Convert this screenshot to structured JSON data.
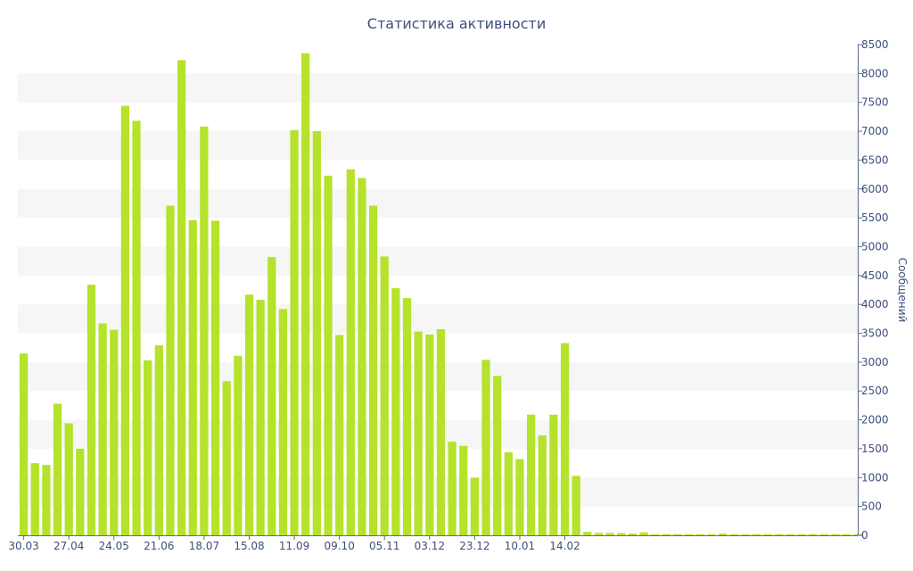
{
  "chart_data": {
    "type": "bar",
    "title": "Статистика активности",
    "xlabel": "",
    "ylabel": "Сообщений",
    "ylim": [
      0,
      8500
    ],
    "yticks": [
      0,
      500,
      1000,
      1500,
      2000,
      2500,
      3000,
      3500,
      4000,
      4500,
      5000,
      5500,
      6000,
      6500,
      7000,
      7500,
      8000,
      8500
    ],
    "xtick_labels": [
      {
        "label": "30.03",
        "index": 0
      },
      {
        "label": "27.04",
        "index": 4
      },
      {
        "label": "24.05",
        "index": 8
      },
      {
        "label": "21.06",
        "index": 12
      },
      {
        "label": "18.07",
        "index": 16
      },
      {
        "label": "15.08",
        "index": 20
      },
      {
        "label": "11.09",
        "index": 24
      },
      {
        "label": "09.10",
        "index": 28
      },
      {
        "label": "05.11",
        "index": 32
      },
      {
        "label": "03.12",
        "index": 36
      },
      {
        "label": "23.12",
        "index": 40
      },
      {
        "label": "10.01",
        "index": 44
      },
      {
        "label": "14.02",
        "index": 48
      }
    ],
    "y_axis_position": "right",
    "grid": "alternating horizontal bands",
    "bar_color": "#b5e22a",
    "values": [
      3150,
      1250,
      1220,
      2280,
      1940,
      1500,
      4340,
      3670,
      3560,
      7440,
      7180,
      3030,
      3290,
      5710,
      8230,
      5460,
      7080,
      5450,
      2670,
      3110,
      4170,
      4080,
      4820,
      3920,
      7020,
      8350,
      7000,
      6230,
      3470,
      6340,
      6190,
      5710,
      4830,
      4280,
      4110,
      3530,
      3480,
      3570,
      1620,
      1550,
      1000,
      3040,
      2760,
      1440,
      1320,
      2090,
      1730,
      2090,
      3330,
      1030,
      60,
      40,
      40,
      40,
      30,
      50,
      20,
      20,
      20,
      20,
      20,
      20,
      30,
      20,
      20,
      20,
      20,
      20,
      20,
      20,
      20,
      20,
      20,
      20,
      20
    ]
  }
}
